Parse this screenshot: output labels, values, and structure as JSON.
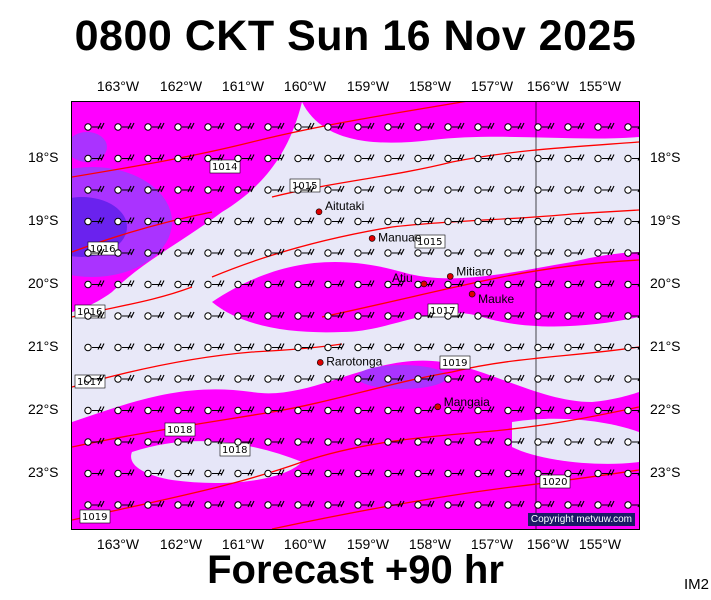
{
  "title": "0800 CKT Sun 16 Nov 2025",
  "footer": "Forecast +90 hr",
  "corner_code": "IM2",
  "copyright": "Copyright metvuw.com",
  "longitude_labels": [
    "163°W",
    "162°W",
    "161°W",
    "160°W",
    "159°W",
    "158°W",
    "157°W",
    "156°W",
    "155°W"
  ],
  "latitude_labels": [
    "18°S",
    "19°S",
    "20°S",
    "21°S",
    "22°S",
    "23°S"
  ],
  "isobar_labels": [
    "1014",
    "1015",
    "1016",
    "1015",
    "1016",
    "1017",
    "1017",
    "1018",
    "1018",
    "1019",
    "1019",
    "1020"
  ],
  "places": [
    {
      "name": "Aitutaki",
      "lon": -159.8,
      "lat": -18.85
    },
    {
      "name": "Manuae",
      "lon": -158.95,
      "lat": -19.27
    },
    {
      "name": "Mitiaro",
      "lon": -157.7,
      "lat": -19.87
    },
    {
      "name": "Atiu",
      "lon": -158.12,
      "lat": -19.99
    },
    {
      "name": "Mauke",
      "lon": -157.35,
      "lat": -20.15
    },
    {
      "name": "Rarotonga",
      "lon": -159.78,
      "lat": -21.23
    },
    {
      "name": "Mangaia",
      "lon": -157.9,
      "lat": -21.93
    }
  ],
  "colors": {
    "background": "#e6e6f8",
    "precip_light": "#ff00ff",
    "precip_heavy": "#9933ff",
    "precip_core": "#5511dd",
    "isobar": "#ff0000",
    "wind_barb": "#000000"
  }
}
